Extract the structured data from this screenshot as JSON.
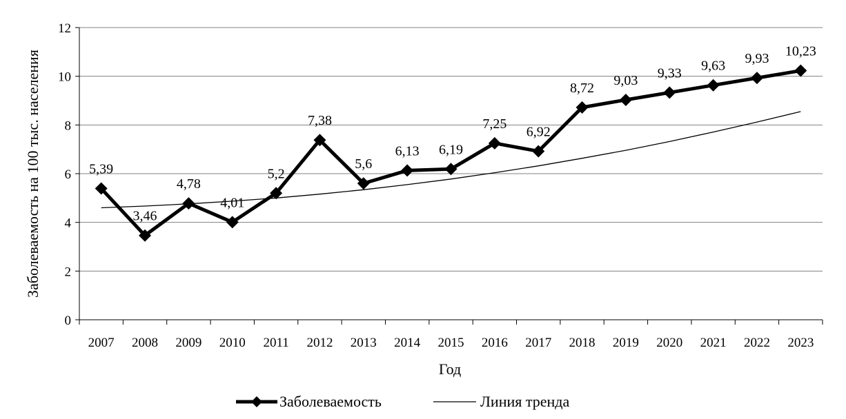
{
  "chart_data": {
    "type": "line",
    "title": "",
    "xlabel": "Год",
    "ylabel": "Заболеваемость на 100 тыс. населения",
    "ylim": [
      0,
      12
    ],
    "yticks": [
      "0",
      "2",
      "4",
      "6",
      "8",
      "10",
      "12"
    ],
    "grid": true,
    "legend_position": "bottom",
    "categories": [
      "2007",
      "2008",
      "2009",
      "2010",
      "2011",
      "2012",
      "2013",
      "2014",
      "2015",
      "2016",
      "2017",
      "2018",
      "2019",
      "2020",
      "2021",
      "2022",
      "2023"
    ],
    "series": [
      {
        "name": "Заболеваемость",
        "values": [
          5.39,
          3.46,
          4.78,
          4.01,
          5.2,
          7.38,
          5.6,
          6.13,
          6.19,
          7.25,
          6.92,
          8.72,
          9.03,
          9.33,
          9.63,
          9.93,
          10.23
        ],
        "labels": [
          "5,39",
          "3,46",
          "4,78",
          "4,01",
          "5,2",
          "7,38",
          "5,6",
          "6,13",
          "6,19",
          "7,25",
          "6,92",
          "8,72",
          "9,03",
          "9,33",
          "9,63",
          "9,93",
          "10,23"
        ],
        "color": "#000000",
        "marker": "diamond"
      },
      {
        "name": "Линия тренда",
        "values": [
          4.6,
          4.67,
          4.76,
          4.87,
          5.0,
          5.16,
          5.34,
          5.55,
          5.78,
          6.04,
          6.32,
          6.63,
          6.96,
          7.32,
          7.71,
          8.12,
          8.55
        ],
        "color": "#000000",
        "marker": "none"
      }
    ]
  }
}
